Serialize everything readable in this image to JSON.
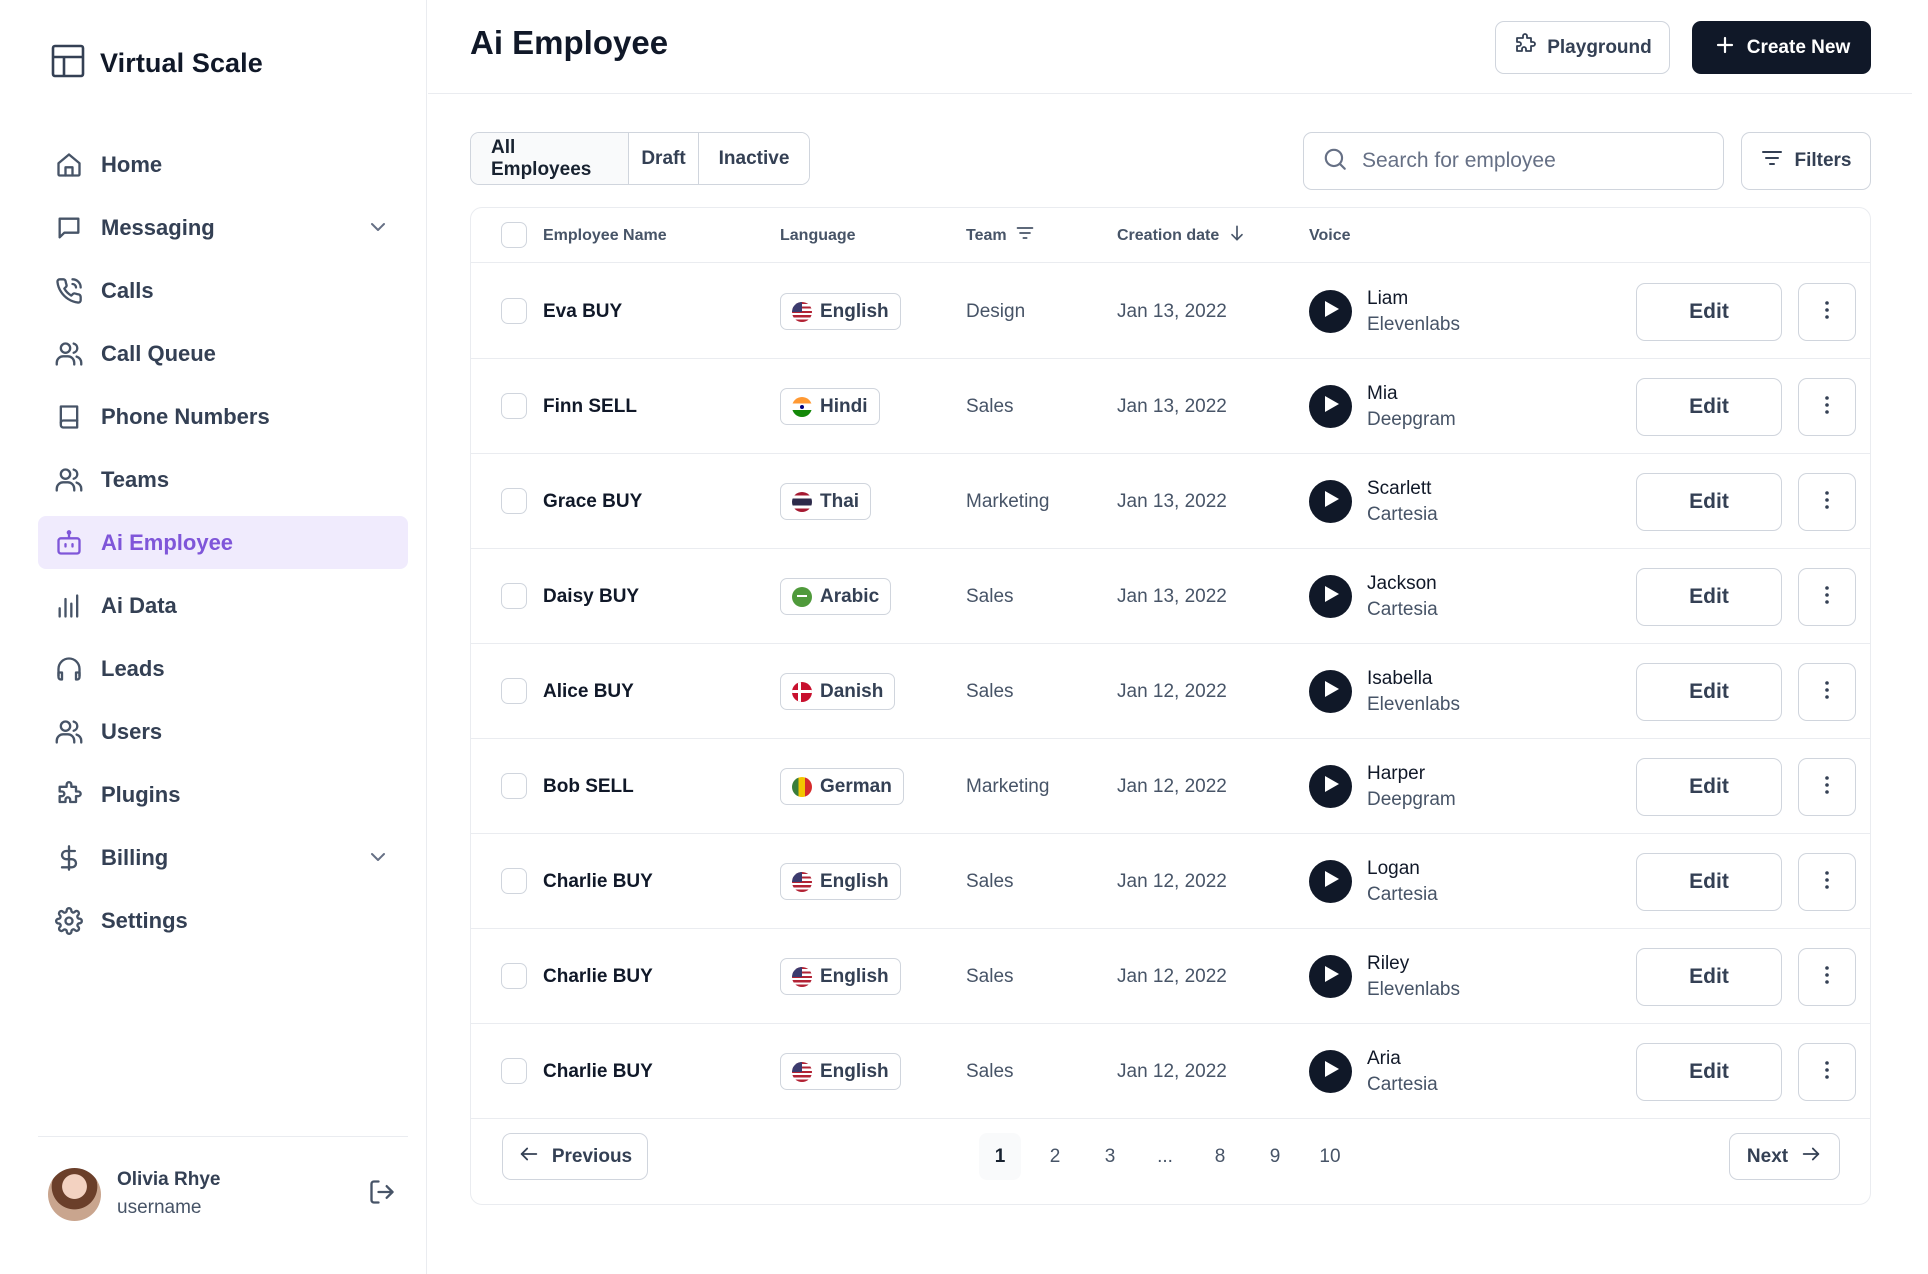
{
  "brand": {
    "name": "Virtual Scale"
  },
  "sidebar": {
    "items": [
      {
        "label": "Home",
        "icon": "home-icon"
      },
      {
        "label": "Messaging",
        "icon": "message-icon",
        "expandable": true
      },
      {
        "label": "Calls",
        "icon": "phone-icon"
      },
      {
        "label": "Call Queue",
        "icon": "users-icon"
      },
      {
        "label": "Phone Numbers",
        "icon": "book-icon"
      },
      {
        "label": "Teams",
        "icon": "users-icon"
      },
      {
        "label": "Ai Employee",
        "icon": "bot-icon",
        "active": true
      },
      {
        "label": "Ai Data",
        "icon": "bar-chart-icon"
      },
      {
        "label": "Leads",
        "icon": "headphones-icon"
      },
      {
        "label": "Users",
        "icon": "users-icon"
      },
      {
        "label": "Plugins",
        "icon": "puzzle-icon"
      },
      {
        "label": "Billing",
        "icon": "dollar-icon",
        "expandable": true
      },
      {
        "label": "Settings",
        "icon": "gear-icon"
      }
    ],
    "user": {
      "name": "Olivia Rhye",
      "username": "username"
    }
  },
  "header": {
    "title": "Ai Employee",
    "playground_label": "Playground",
    "create_label": "Create New"
  },
  "tabs": [
    {
      "label": "All Employees",
      "active": true
    },
    {
      "label": "Draft"
    },
    {
      "label": "Inactive"
    }
  ],
  "search": {
    "placeholder": "Search for employee",
    "value": ""
  },
  "filters_label": "Filters",
  "table": {
    "columns": {
      "name": "Employee Name",
      "language": "Language",
      "team": "Team",
      "created": "Creation date",
      "voice": "Voice"
    },
    "edit_label": "Edit",
    "rows": [
      {
        "name": "Eva BUY",
        "language": "English",
        "flag": "us",
        "team": "Design",
        "date": "Jan 13, 2022",
        "voice": "Liam",
        "provider": "Elevenlabs"
      },
      {
        "name": "Finn SELL",
        "language": "Hindi",
        "flag": "in",
        "team": "Sales",
        "date": "Jan 13, 2022",
        "voice": "Mia",
        "provider": "Deepgram"
      },
      {
        "name": "Grace BUY",
        "language": "Thai",
        "flag": "th",
        "team": "Marketing",
        "date": "Jan 13, 2022",
        "voice": "Scarlett",
        "provider": "Cartesia"
      },
      {
        "name": "Daisy BUY",
        "language": "Arabic",
        "flag": "sa",
        "team": "Sales",
        "date": "Jan 13, 2022",
        "voice": "Jackson",
        "provider": "Cartesia"
      },
      {
        "name": "Alice BUY",
        "language": "Danish",
        "flag": "dk",
        "team": "Sales",
        "date": "Jan 12, 2022",
        "voice": "Isabella",
        "provider": "Elevenlabs"
      },
      {
        "name": "Bob SELL",
        "language": "German",
        "flag": "de",
        "team": "Marketing",
        "date": "Jan 12, 2022",
        "voice": "Harper",
        "provider": "Deepgram"
      },
      {
        "name": "Charlie BUY",
        "language": "English",
        "flag": "us",
        "team": "Sales",
        "date": "Jan 12, 2022",
        "voice": "Logan",
        "provider": "Cartesia"
      },
      {
        "name": "Charlie BUY",
        "language": "English",
        "flag": "us",
        "team": "Sales",
        "date": "Jan 12, 2022",
        "voice": "Riley",
        "provider": "Elevenlabs"
      },
      {
        "name": "Charlie BUY",
        "language": "English",
        "flag": "us",
        "team": "Sales",
        "date": "Jan 12, 2022",
        "voice": "Aria",
        "provider": "Cartesia"
      }
    ]
  },
  "pagination": {
    "previous_label": "Previous",
    "next_label": "Next",
    "pages": [
      "1",
      "2",
      "3",
      "...",
      "8",
      "9",
      "10"
    ],
    "current": "1"
  },
  "colors": {
    "accent": "#7f56d9",
    "accent_bg": "#f0ebfd",
    "primary": "#101828"
  }
}
